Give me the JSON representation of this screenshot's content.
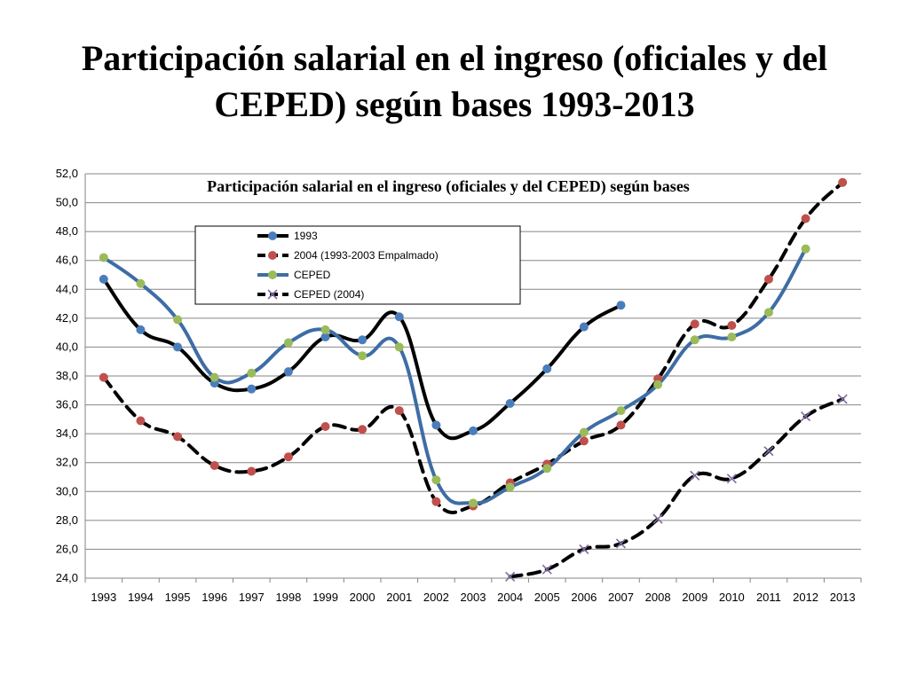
{
  "slide": {
    "title": "Participación salarial en el ingreso  (oficiales y del CEPED) según bases 1993-2013"
  },
  "chart_data": {
    "type": "line",
    "title": "Participación salarial  en el ingreso  (oficiales y del CEPED) según bases",
    "xlabel": "",
    "ylabel": "",
    "ylim": [
      24,
      52
    ],
    "ytick_step": 2,
    "y_tick_labels": [
      "24,0",
      "26,0",
      "28,0",
      "30,0",
      "32,0",
      "34,0",
      "36,0",
      "38,0",
      "40,0",
      "42,0",
      "44,0",
      "46,0",
      "48,0",
      "50,0",
      "52,0"
    ],
    "grid": true,
    "legend_position": "upper-left",
    "categories": [
      "1993",
      "1994",
      "1995",
      "1996",
      "1997",
      "1998",
      "1999",
      "2000",
      "2001",
      "2002",
      "2003",
      "2004",
      "2005",
      "2006",
      "2007",
      "2008",
      "2009",
      "2010",
      "2011",
      "2012",
      "2013"
    ],
    "series": [
      {
        "name": "1993",
        "line_color": "#000000",
        "dash": false,
        "marker": "circle",
        "marker_color": "#4a7ebb",
        "values": [
          44.7,
          41.2,
          40.0,
          37.5,
          37.1,
          38.3,
          40.7,
          40.5,
          42.1,
          34.6,
          34.2,
          36.1,
          38.5,
          41.4,
          42.9,
          null,
          null,
          null,
          null,
          null,
          null
        ]
      },
      {
        "name": "2004 (1993-2003 Empalmado)",
        "line_color": "#000000",
        "dash": true,
        "marker": "circle",
        "marker_color": "#c0504d",
        "values": [
          37.9,
          34.9,
          33.8,
          31.8,
          31.4,
          32.4,
          34.5,
          34.3,
          35.6,
          29.3,
          29.0,
          30.6,
          31.9,
          33.5,
          34.6,
          37.8,
          41.6,
          41.5,
          44.7,
          48.9,
          51.4
        ]
      },
      {
        "name": "CEPED",
        "line_color": "#3e6da5",
        "dash": false,
        "marker": "circle",
        "marker_color": "#9bbb59",
        "values": [
          46.2,
          44.4,
          41.9,
          37.9,
          38.2,
          40.3,
          41.2,
          39.4,
          40.0,
          30.8,
          29.2,
          30.3,
          31.6,
          34.1,
          35.6,
          37.4,
          40.5,
          40.7,
          42.4,
          46.8,
          null
        ]
      },
      {
        "name": "CEPED (2004)",
        "line_color": "#000000",
        "dash": true,
        "marker": "x",
        "marker_color": "#7f6a9f",
        "values": [
          null,
          null,
          null,
          null,
          null,
          null,
          null,
          null,
          null,
          null,
          null,
          24.1,
          24.6,
          26.0,
          26.4,
          28.1,
          31.1,
          30.9,
          32.8,
          35.2,
          36.4
        ]
      }
    ]
  }
}
